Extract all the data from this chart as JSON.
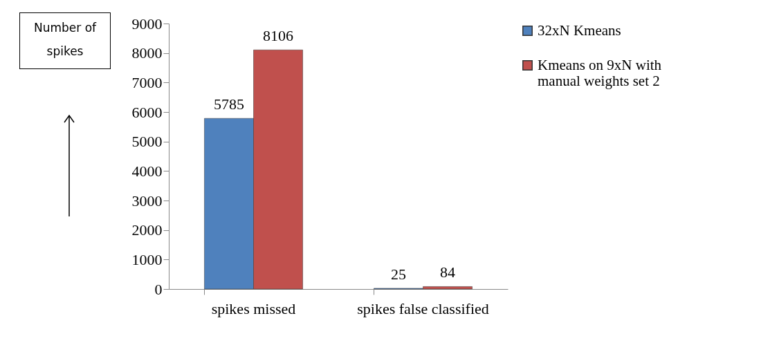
{
  "chart_data": {
    "type": "bar",
    "ylabel": "Number of spikes",
    "categories": [
      "spikes missed",
      "spikes false classified"
    ],
    "series": [
      {
        "name": "32xN Kmeans",
        "color": "#4f81bd",
        "values": [
          5785,
          25
        ]
      },
      {
        "name": "Kmeans on 9xN with manual weights set 2",
        "color": "#c0504d",
        "values": [
          8106,
          84
        ]
      }
    ],
    "ylim": [
      0,
      9000
    ],
    "yticks": [
      0,
      1000,
      2000,
      3000,
      4000,
      5000,
      6000,
      7000,
      8000,
      9000
    ],
    "grid": false,
    "legend": "right",
    "data_labels": true
  }
}
